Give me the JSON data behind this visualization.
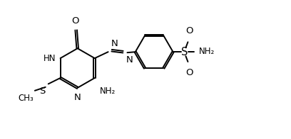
{
  "background": "#ffffff",
  "line_color": "#000000",
  "line_width": 1.4,
  "font_size": 8.5,
  "figsize": [
    4.08,
    1.96
  ],
  "dpi": 100,
  "xlim": [
    0,
    4.08
  ],
  "ylim": [
    0,
    1.96
  ]
}
